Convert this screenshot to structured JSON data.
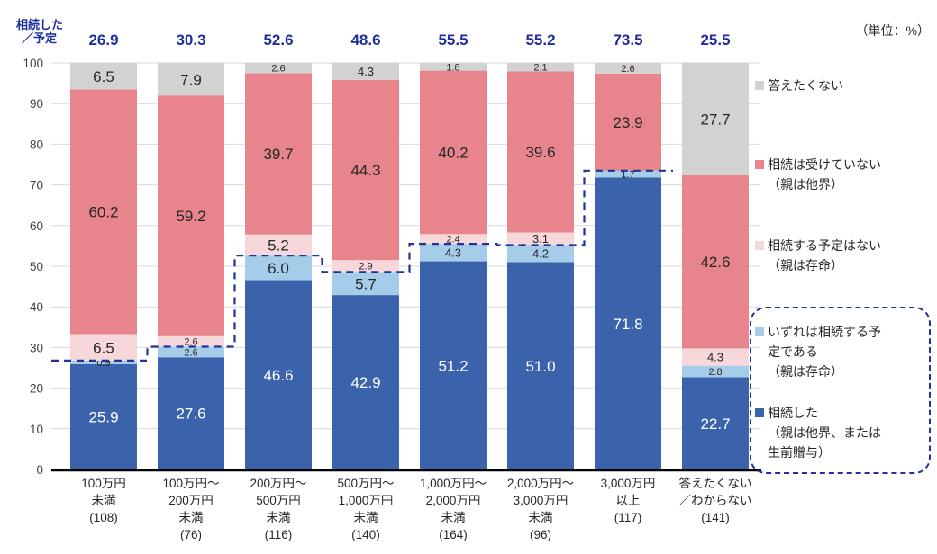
{
  "page": {
    "unit_note": "（単位：%）"
  },
  "axis_title": {
    "line1": "相続した",
    "line2": "／予定"
  },
  "colors": {
    "inherited": "#3b63ac",
    "will_inherit": "#a5cde9",
    "no_plan": "#f6d8da",
    "not_received": "#e8858c",
    "no_answer": "#d2d2d2",
    "navy_accent": "#1f2f9e",
    "grid": "#d9d9d9"
  },
  "chart_data": {
    "type": "bar",
    "stacked": true,
    "title": "",
    "xlabel": "",
    "ylabel": "相続した／予定",
    "ylim": [
      0,
      100
    ],
    "yticks": [
      0,
      10,
      20,
      30,
      40,
      50,
      60,
      70,
      80,
      90,
      100
    ],
    "grid": true,
    "legend_position": "right",
    "categories": [
      [
        "100万円",
        "未満",
        "(108)"
      ],
      [
        "100万円～",
        "200万円",
        "未満",
        "(76)"
      ],
      [
        "200万円～",
        "500万円",
        "未満",
        "(116)"
      ],
      [
        "500万円～",
        "1,000万円",
        "未満",
        "(140)"
      ],
      [
        "1,000万円～",
        "2,000万円",
        "未満",
        "(164)"
      ],
      [
        "2,000万円～",
        "3,000万円",
        "未満",
        "(96)"
      ],
      [
        "3,000万円",
        "以上",
        "(117)"
      ],
      [
        "答えたくない",
        "／わからない",
        "(141)"
      ]
    ],
    "series": [
      {
        "name": "相続した（親は他界、または生前贈与）",
        "color": "#3b63ac",
        "text_color": "#ffffff",
        "values": [
          25.9,
          27.6,
          46.6,
          42.9,
          51.2,
          51.0,
          71.8,
          22.7
        ]
      },
      {
        "name": "いずれは相続する予定である（親は存命）",
        "color": "#a5cde9",
        "text_color": "#262626",
        "values": [
          0.9,
          2.6,
          6.0,
          5.7,
          4.3,
          4.2,
          1.7,
          2.8
        ]
      },
      {
        "name": "相続する予定はない（親は存命）",
        "color": "#f6d8da",
        "text_color": "#262626",
        "values": [
          6.5,
          2.6,
          5.2,
          2.9,
          2.4,
          3.1,
          0,
          4.3
        ]
      },
      {
        "name": "相続は受けていない（親は他界）",
        "color": "#e8858c",
        "text_color": "#262626",
        "values": [
          60.2,
          59.2,
          39.7,
          44.3,
          40.2,
          39.6,
          23.9,
          42.6
        ]
      },
      {
        "name": "答えたくない",
        "color": "#d2d2d2",
        "text_color": "#262626",
        "values": [
          6.5,
          7.9,
          2.6,
          4.3,
          1.8,
          2.1,
          2.6,
          27.7
        ]
      }
    ],
    "totals": [
      26.9,
      30.3,
      52.6,
      48.6,
      55.5,
      55.2,
      73.5,
      25.5
    ],
    "dashed_line_note": "step line traces 相続した＋いずれは相続する予定 cumulative over bars 1-7"
  },
  "legend": {
    "items": [
      {
        "lines": [
          "答えたくない"
        ],
        "color": "#d2d2d2",
        "boxed": false
      },
      {
        "lines": [
          "相続は受けていない",
          "（親は他界）"
        ],
        "color": "#e8858c",
        "boxed": false
      },
      {
        "lines": [
          "相続する予定はない",
          "（親は存命）"
        ],
        "color": "#f6d8da",
        "boxed": false
      },
      {
        "lines": [
          "いずれは相続する予",
          "定である",
          "（親は存命）"
        ],
        "color": "#a5cde9",
        "boxed": true
      },
      {
        "lines": [
          "相続した",
          "（親は他界、または",
          "生前贈与）"
        ],
        "color": "#3b63ac",
        "boxed": true
      }
    ]
  }
}
